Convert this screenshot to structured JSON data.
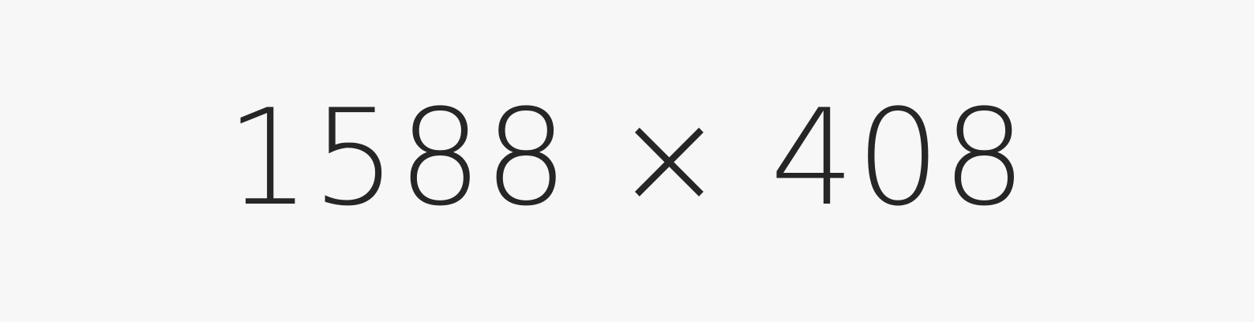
{
  "label": "1588 × 408",
  "colors": {
    "background": "#f7f7f7",
    "text": "#262626"
  }
}
